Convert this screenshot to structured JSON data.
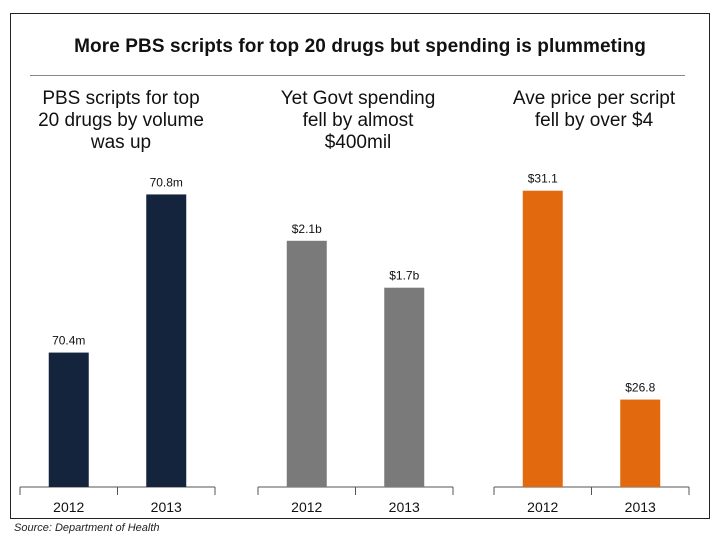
{
  "title": "More PBS scripts for top 20 drugs but spending is plummeting",
  "source": "Source: Department of Health",
  "colors": {
    "navy": "#14243d",
    "gray": "#7a7a7a",
    "orange": "#e2690e"
  },
  "chart_data": [
    {
      "type": "bar",
      "title": "PBS scripts for top\n20 drugs by volume\nwas up",
      "categories": [
        "2012",
        "2013"
      ],
      "values": [
        70.4,
        70.8
      ],
      "value_labels": [
        "70.4m",
        "70.8m"
      ],
      "ylim": [
        70.06,
        70.92
      ],
      "color": "#14243d",
      "grid": false,
      "legend": "none"
    },
    {
      "type": "bar",
      "title": "Yet Govt spending\nfell by almost\n$400mil",
      "categories": [
        "2012",
        "2013"
      ],
      "values": [
        2.1,
        1.7
      ],
      "value_labels": [
        "$2.1b",
        "$1.7b"
      ],
      "ylim": [
        0,
        2.9
      ],
      "color": "#7a7a7a",
      "grid": false,
      "legend": "none"
    },
    {
      "type": "bar",
      "title": "Ave price per script\nfell by over $4",
      "categories": [
        "2012",
        "2013"
      ],
      "values": [
        31.1,
        26.8
      ],
      "value_labels": [
        "$31.1",
        "$26.8"
      ],
      "ylim": [
        25.0,
        32.0
      ],
      "color": "#e2690e",
      "grid": false,
      "legend": "none"
    }
  ]
}
